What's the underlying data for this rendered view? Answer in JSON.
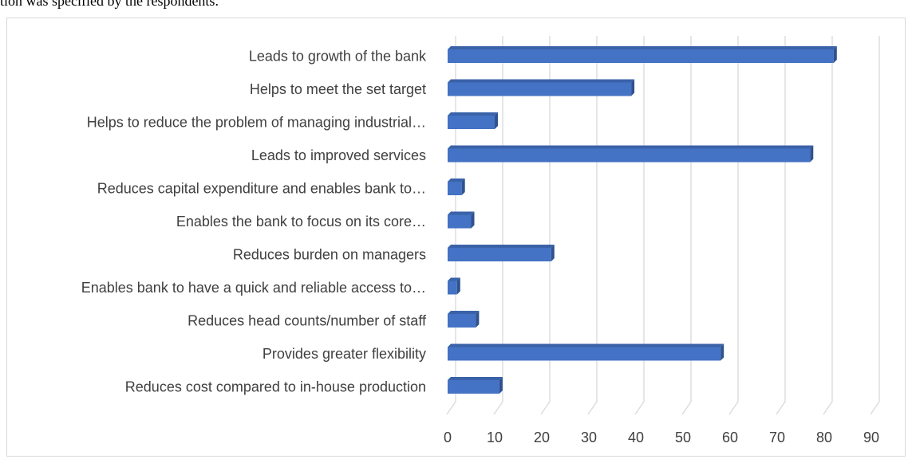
{
  "page": {
    "top_text": "tion was specified by the respondents."
  },
  "chart_data": {
    "type": "bar",
    "orientation": "horizontal",
    "style": "3d",
    "categories": [
      "Leads to growth of the bank",
      "Helps to meet the set target",
      "Helps to reduce the problem of managing industrial…",
      "Leads to improved services",
      "Reduces capital expenditure and enables bank to…",
      "Enables the bank to focus on its core…",
      "Reduces burden on managers",
      "Enables bank to have a quick and reliable access to…",
      "Reduces head counts/number of staff",
      "Provides greater flexibility",
      "Reduces cost compared to in-house production"
    ],
    "values": [
      82,
      39,
      10,
      77,
      3,
      5,
      22,
      2,
      6,
      58,
      11
    ],
    "xlim": [
      0,
      90
    ],
    "xticks": [
      0,
      10,
      20,
      30,
      40,
      50,
      60,
      70,
      80,
      90
    ],
    "xtick_labels": [
      "0",
      "10",
      "20",
      "30",
      "40",
      "50",
      "60",
      "70",
      "80",
      "90"
    ],
    "title": "",
    "xlabel": "",
    "ylabel": "",
    "grid": true,
    "legend": "none",
    "bar_color": "#4472c4",
    "bar_side_color": "#2f528f",
    "bar_top_color": "#3a62a8",
    "grid_color": "#d9d9d9",
    "label_color": "#404040"
  }
}
